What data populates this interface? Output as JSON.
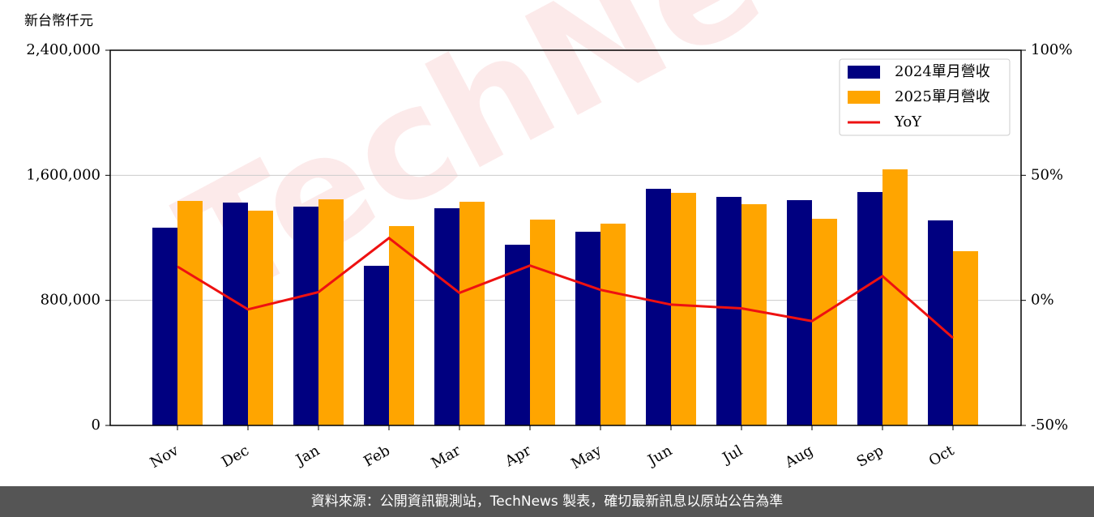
{
  "chart_data": {
    "type": "bar",
    "y_label": "新台幣仟元",
    "watermark": "TechNews",
    "footer": "資料來源：公開資訊觀測站，TechNews 製表，確切最新訊息以原站公告為準",
    "categories": [
      "Nov",
      "Dec",
      "Jan",
      "Feb",
      "Mar",
      "Apr",
      "May",
      "Jun",
      "Jul",
      "Aug",
      "Sep",
      "Oct"
    ],
    "series": [
      {
        "name": "2024單月營收",
        "color": "#000080",
        "values": [
          1265000,
          1425600,
          1399700,
          1021200,
          1389300,
          1156000,
          1239000,
          1513700,
          1461900,
          1441200,
          1493000,
          1311600
        ]
      },
      {
        "name": "2025單月營收",
        "color": "#ffa500",
        "values": [
          1436000,
          1373800,
          1446300,
          1275300,
          1430800,
          1316700,
          1290800,
          1487800,
          1415200,
          1321900,
          1638100,
          1114600
        ]
      },
      {
        "name": "YoY",
        "type": "line",
        "axis": "y2",
        "color": "#ee1111",
        "values": [
          13.5,
          -3.6,
          3.3,
          24.9,
          3.0,
          13.9,
          4.2,
          -1.7,
          -3.2,
          -8.3,
          9.7,
          -15.0
        ]
      }
    ],
    "ylim": [
      0,
      2400000
    ],
    "yticks": [
      0,
      {
        "value": 800000,
        "label": "800,000"
      },
      {
        "value": 1600000,
        "label": "1,600,000"
      },
      {
        "value": 2400000,
        "label": "2,400,000"
      }
    ],
    "y2lim": [
      -50,
      100
    ],
    "y2ticks": [
      {
        "value": -50,
        "label": "-50%"
      },
      {
        "value": 0,
        "label": "0%"
      },
      {
        "value": 50,
        "label": "50%"
      },
      {
        "value": 100,
        "label": "100%"
      }
    ],
    "grid": true,
    "legend": "upper right"
  }
}
